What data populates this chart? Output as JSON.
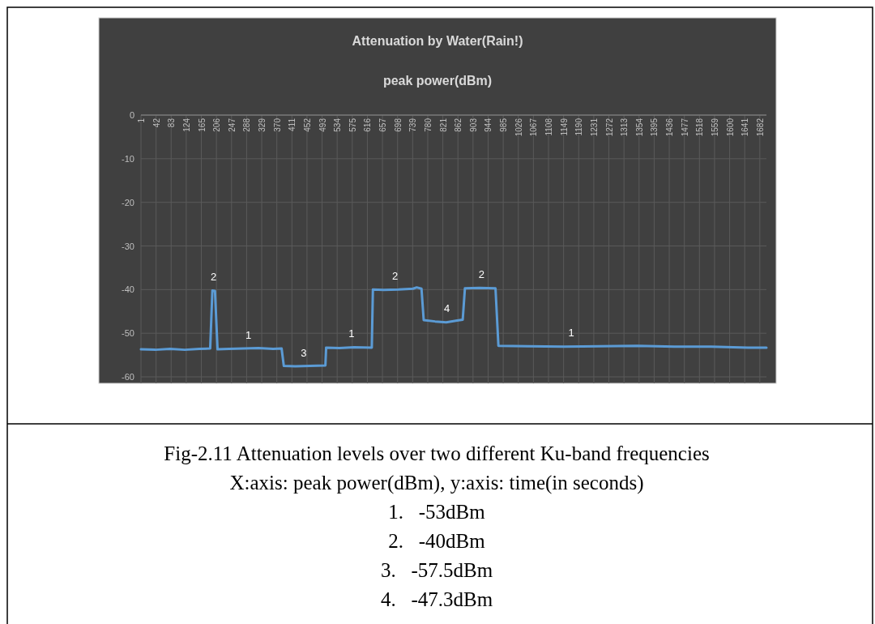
{
  "chart_data": {
    "type": "line",
    "title": "Attenuation by Water(Rain!)",
    "subtitle": "peak power(dBm)",
    "series": [
      {
        "color": "#5b9bd5",
        "x": [
          1,
          40,
          80,
          120,
          160,
          189,
          195,
          202,
          209,
          240,
          280,
          320,
          360,
          383,
          389,
          420,
          460,
          502,
          504,
          540,
          580,
          628,
          631,
          660,
          700,
          740,
          750,
          763,
          769,
          800,
          830,
          860,
          875,
          881,
          920,
          964,
          972,
          1050,
          1150,
          1250,
          1350,
          1450,
          1550,
          1650,
          1700
        ],
        "values": [
          -53.7,
          -53.8,
          -53.6,
          -53.8,
          -53.6,
          -53.5,
          -40.2,
          -40.3,
          -53.7,
          -53.6,
          -53.5,
          -53.4,
          -53.6,
          -53.5,
          -57.5,
          -57.6,
          -57.5,
          -57.4,
          -53.3,
          -53.4,
          -53.2,
          -53.3,
          -40,
          -40.1,
          -40,
          -39.8,
          -39.5,
          -39.8,
          -47,
          -47.3,
          -47.5,
          -47.1,
          -46.9,
          -39.7,
          -39.6,
          -39.7,
          -52.9,
          -53,
          -53.1,
          -53,
          -52.9,
          -53.1,
          -53.1,
          -53.3,
          -53.3
        ]
      }
    ],
    "xlim": [
      1,
      1700
    ],
    "xticks": [
      1,
      42,
      83,
      124,
      165,
      206,
      247,
      288,
      329,
      370,
      411,
      452,
      493,
      534,
      575,
      616,
      657,
      698,
      739,
      780,
      821,
      862,
      903,
      944,
      985,
      1026,
      1067,
      1108,
      1149,
      1190,
      1231,
      1272,
      1313,
      1354,
      1395,
      1436,
      1477,
      1518,
      1559,
      1600,
      1641,
      1682
    ],
    "ylim": [
      -60,
      0
    ],
    "yticks": [
      0,
      -10,
      -20,
      -30,
      -40,
      -50,
      -60
    ],
    "grid": true,
    "marker": "none",
    "line_style": "solid",
    "annotations": [
      {
        "text": "2",
        "x": 198,
        "y": -40.2
      },
      {
        "text": "1",
        "x": 293,
        "y": -53.5
      },
      {
        "text": "3",
        "x": 443,
        "y": -57.5
      },
      {
        "text": "1",
        "x": 573,
        "y": -53.2
      },
      {
        "text": "2",
        "x": 691,
        "y": -40
      },
      {
        "text": "4",
        "x": 832,
        "y": -47.3
      },
      {
        "text": "2",
        "x": 926,
        "y": -39.6
      },
      {
        "text": "1",
        "x": 1170,
        "y": -53
      },
      "Fig-2.11 Attenuation levels over two different Ku-band frequencies",
      "X:axis: peak power(dBm), y:axis: time(in seconds)",
      "1.   -53dBm",
      "2.   -40dBm",
      "3.   -57.5dBm",
      "4.   -47.3dBm"
    ]
  }
}
